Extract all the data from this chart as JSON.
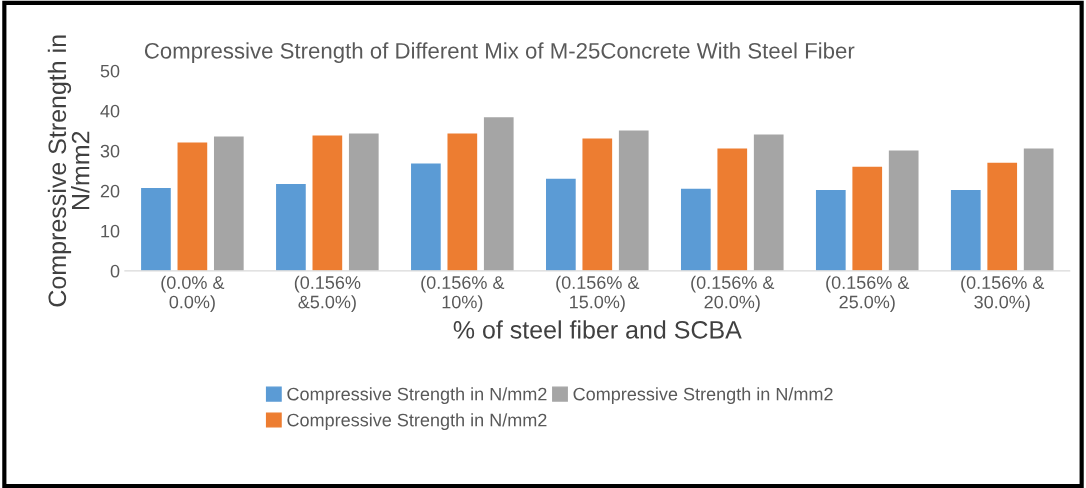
{
  "chart_data": {
    "type": "bar",
    "title": "Compressive Strength of Different Mix of M-25Concrete With Steel Fiber",
    "xlabel": "% of steel fiber and SCBA",
    "ylabel": "Compressive Strength in\nN/mm2",
    "categories": [
      "(0.0% &\n0.0%)",
      "(0.156%\n&5.0%)",
      "(0.156% &\n10%)",
      "(0.156% &\n15.0%)",
      "(0.156% &\n20.0%)",
      "(0.156% &\n25.0%)",
      "(0.156% &\n30.0%)"
    ],
    "series": [
      {
        "name": "Compressive Strength in N/mm2",
        "color": "#5b9bd5",
        "values": [
          20.7,
          21.7,
          26.8,
          23.0,
          20.5,
          20.2,
          20.2
        ]
      },
      {
        "name": "Compressive Strength in N/mm2",
        "color": "#ed7d31",
        "values": [
          32.1,
          33.8,
          34.3,
          33.1,
          30.6,
          26.0,
          27.0
        ]
      },
      {
        "name": "Compressive Strength in N/mm2",
        "color": "#a5a5a5",
        "values": [
          33.6,
          34.3,
          38.4,
          35.1,
          34.1,
          30.1,
          30.6
        ]
      }
    ],
    "ylim": [
      0,
      50
    ],
    "yticks": [
      0,
      10,
      20,
      30,
      40,
      50
    ],
    "grid": false,
    "legend": "bottom"
  }
}
